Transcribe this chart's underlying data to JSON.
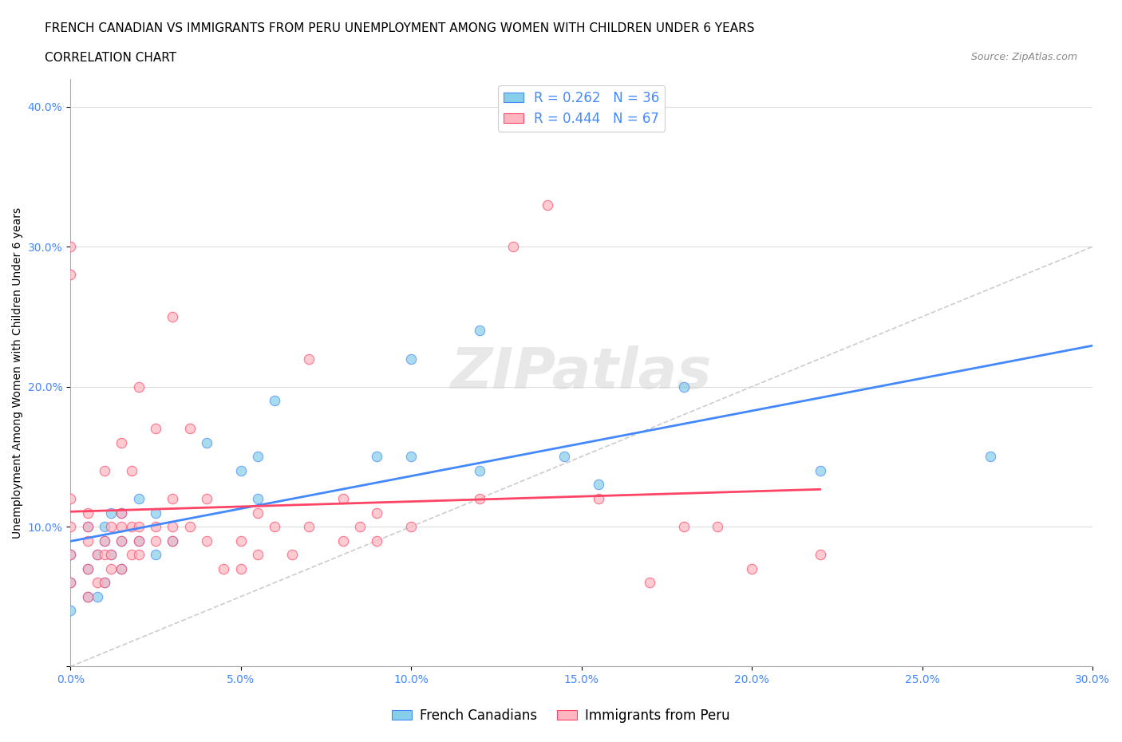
{
  "title_line1": "FRENCH CANADIAN VS IMMIGRANTS FROM PERU UNEMPLOYMENT AMONG WOMEN WITH CHILDREN UNDER 6 YEARS",
  "title_line2": "CORRELATION CHART",
  "source": "Source: ZipAtlas.com",
  "xlabel": "",
  "ylabel": "Unemployment Among Women with Children Under 6 years",
  "xlim": [
    0.0,
    0.3
  ],
  "ylim": [
    0.0,
    0.42
  ],
  "xticks": [
    0.0,
    0.05,
    0.1,
    0.15,
    0.2,
    0.25,
    0.3
  ],
  "yticks": [
    0.0,
    0.1,
    0.2,
    0.3,
    0.4
  ],
  "xtick_labels": [
    "0.0%",
    "5.0%",
    "10.0%",
    "15.0%",
    "20.0%",
    "25.0%",
    "30.0%"
  ],
  "ytick_labels": [
    "",
    "10.0%",
    "20.0%",
    "30.0%",
    "40.0%"
  ],
  "blue_R": 0.262,
  "blue_N": 36,
  "pink_R": 0.444,
  "pink_N": 67,
  "blue_color": "#87CEEB",
  "pink_color": "#FFB6C1",
  "blue_line_color": "#4488FF",
  "pink_line_color": "#FF4466",
  "diagonal_color": "#CCCCCC",
  "blue_scatter_x": [
    0.0,
    0.0,
    0.0,
    0.005,
    0.005,
    0.005,
    0.008,
    0.008,
    0.01,
    0.01,
    0.01,
    0.012,
    0.012,
    0.015,
    0.015,
    0.015,
    0.02,
    0.02,
    0.025,
    0.025,
    0.03,
    0.04,
    0.05,
    0.055,
    0.055,
    0.06,
    0.09,
    0.1,
    0.1,
    0.12,
    0.12,
    0.145,
    0.155,
    0.18,
    0.22,
    0.27
  ],
  "blue_scatter_y": [
    0.04,
    0.06,
    0.08,
    0.05,
    0.07,
    0.1,
    0.05,
    0.08,
    0.06,
    0.09,
    0.1,
    0.08,
    0.11,
    0.07,
    0.09,
    0.11,
    0.09,
    0.12,
    0.08,
    0.11,
    0.09,
    0.16,
    0.14,
    0.12,
    0.15,
    0.19,
    0.15,
    0.15,
    0.22,
    0.14,
    0.24,
    0.15,
    0.13,
    0.2,
    0.14,
    0.15
  ],
  "pink_scatter_x": [
    0.0,
    0.0,
    0.0,
    0.0,
    0.0,
    0.0,
    0.005,
    0.005,
    0.005,
    0.005,
    0.005,
    0.008,
    0.008,
    0.01,
    0.01,
    0.01,
    0.01,
    0.012,
    0.012,
    0.012,
    0.015,
    0.015,
    0.015,
    0.015,
    0.015,
    0.018,
    0.018,
    0.018,
    0.02,
    0.02,
    0.02,
    0.02,
    0.025,
    0.025,
    0.025,
    0.03,
    0.03,
    0.03,
    0.03,
    0.035,
    0.035,
    0.04,
    0.04,
    0.045,
    0.05,
    0.05,
    0.055,
    0.055,
    0.06,
    0.065,
    0.07,
    0.07,
    0.08,
    0.08,
    0.085,
    0.09,
    0.09,
    0.1,
    0.12,
    0.13,
    0.14,
    0.155,
    0.17,
    0.18,
    0.19,
    0.2,
    0.22
  ],
  "pink_scatter_y": [
    0.06,
    0.08,
    0.1,
    0.12,
    0.28,
    0.3,
    0.05,
    0.07,
    0.09,
    0.1,
    0.11,
    0.06,
    0.08,
    0.06,
    0.08,
    0.09,
    0.14,
    0.07,
    0.08,
    0.1,
    0.07,
    0.09,
    0.1,
    0.11,
    0.16,
    0.08,
    0.1,
    0.14,
    0.08,
    0.09,
    0.1,
    0.2,
    0.09,
    0.1,
    0.17,
    0.09,
    0.1,
    0.12,
    0.25,
    0.1,
    0.17,
    0.09,
    0.12,
    0.07,
    0.07,
    0.09,
    0.08,
    0.11,
    0.1,
    0.08,
    0.1,
    0.22,
    0.09,
    0.12,
    0.1,
    0.09,
    0.11,
    0.1,
    0.12,
    0.3,
    0.33,
    0.12,
    0.06,
    0.1,
    0.1,
    0.07,
    0.08
  ],
  "title_fontsize": 11,
  "subtitle_fontsize": 11,
  "axis_label_fontsize": 10,
  "tick_fontsize": 10,
  "legend_fontsize": 12,
  "source_fontsize": 9
}
